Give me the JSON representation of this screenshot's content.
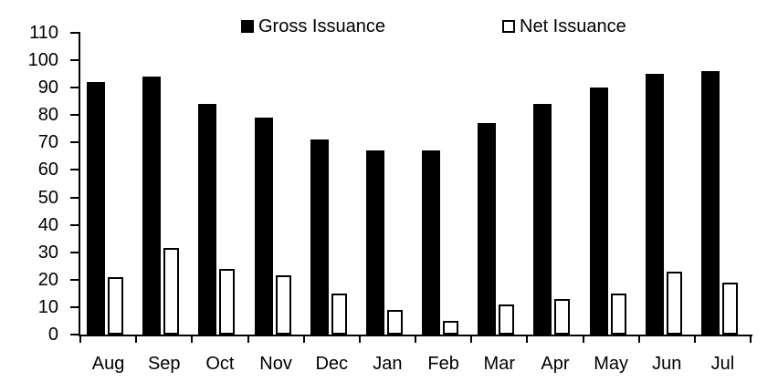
{
  "chart_data": {
    "type": "bar",
    "title": "",
    "xlabel": "",
    "ylabel": "",
    "categories": [
      "Aug",
      "Sep",
      "Oct",
      "Nov",
      "Dec",
      "Jan",
      "Feb",
      "Mar",
      "Apr",
      "May",
      "Jun",
      "Jul"
    ],
    "series": [
      {
        "name": "Gross Issuance",
        "style": "filled",
        "fill_color": "#000000",
        "border_color": "#000000",
        "values": [
          92,
          94,
          84,
          79,
          71,
          67,
          67,
          77,
          84,
          90,
          95,
          96
        ]
      },
      {
        "name": "Net Issuance",
        "style": "outlined",
        "fill_color": "#ffffff",
        "border_color": "#000000",
        "values": [
          21,
          31.5,
          24,
          21.5,
          15,
          9,
          5,
          11,
          13,
          15,
          23,
          19
        ]
      }
    ],
    "ylim": [
      0,
      110
    ],
    "yticks": [
      0,
      10,
      20,
      30,
      40,
      50,
      60,
      70,
      80,
      90,
      100,
      110
    ],
    "grid": false,
    "legend_position": "top-center"
  },
  "colors": {
    "background": "#ffffff",
    "axis": "#000000",
    "text": "#000000"
  }
}
